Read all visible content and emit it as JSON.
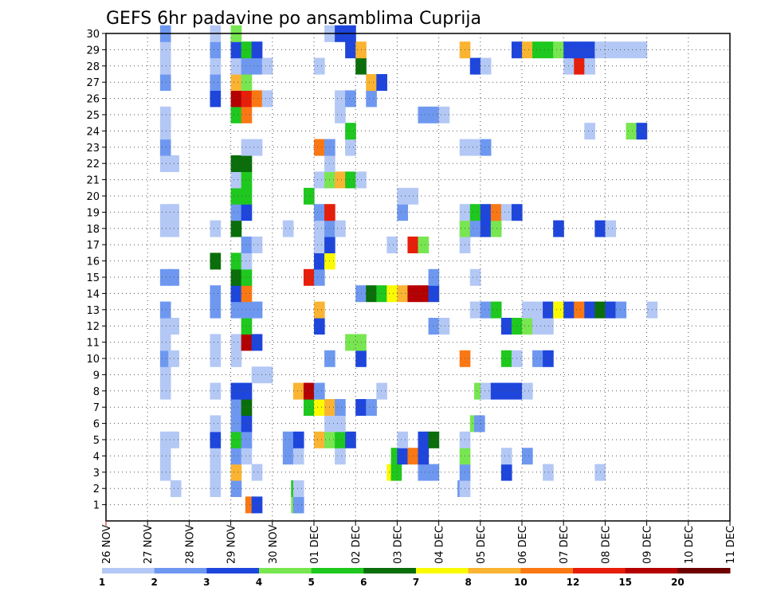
{
  "chart_data": {
    "type": "heatmap",
    "title": "GEFS 6hr padavine po ansamblima Cuprija",
    "xlabel": "",
    "ylabel": "",
    "x_ticks": [
      "26 NOV",
      "27 NOV",
      "28 NOV",
      "29 NOV",
      "30 NOV",
      "01 DEC",
      "02 DEC",
      "03 DEC",
      "04 DEC",
      "05 DEC",
      "06 DEC",
      "07 DEC",
      "08 DEC",
      "09 DEC",
      "10 DEC",
      "11 DEC"
    ],
    "y_ticks": [
      1,
      2,
      3,
      4,
      5,
      6,
      7,
      8,
      9,
      10,
      11,
      12,
      13,
      14,
      15,
      16,
      17,
      18,
      19,
      20,
      21,
      22,
      23,
      24,
      25,
      26,
      27,
      28,
      29,
      30
    ],
    "ylim": [
      0,
      30
    ],
    "grid": true,
    "legend": {
      "placement": "bottom",
      "bins": [
        {
          "label": "1",
          "color": "#b4c8f5"
        },
        {
          "label": "2",
          "color": "#6e98f0"
        },
        {
          "label": "3",
          "color": "#1e46dc"
        },
        {
          "label": "4",
          "color": "#78e650"
        },
        {
          "label": "5",
          "color": "#1ec81e"
        },
        {
          "label": "6",
          "color": "#0a6e0a"
        },
        {
          "label": "7",
          "color": "#fafa00"
        },
        {
          "label": "8",
          "color": "#fab432"
        },
        {
          "label": "10",
          "color": "#fa7814"
        },
        {
          "label": "12",
          "color": "#e61e0a"
        },
        {
          "label": "15",
          "color": "#b40000"
        },
        {
          "label": "20",
          "color": "#6e0000"
        }
      ],
      "extra_labels": [
        "1",
        "2",
        "3",
        "4",
        "5",
        "6",
        "7",
        "8",
        "10",
        "12",
        "15",
        "20"
      ]
    },
    "member_data": {
      "1": [
        [
          29.35,
          11
        ],
        [
          29.5,
          3
        ],
        [
          30.45,
          4
        ],
        [
          30.5,
          2
        ]
      ],
      "2": [
        [
          27.55,
          1
        ],
        [
          28.5,
          1
        ],
        [
          29.0,
          2
        ],
        [
          30.45,
          5
        ],
        [
          30.5,
          1
        ],
        [
          34.45,
          2
        ],
        [
          34.5,
          1
        ]
      ],
      "3": [
        [
          27.3,
          1
        ],
        [
          28.5,
          1
        ],
        [
          29.0,
          9
        ],
        [
          29.5,
          1
        ],
        [
          32.75,
          7
        ],
        [
          32.85,
          5
        ],
        [
          33.5,
          2
        ],
        [
          33.75,
          2
        ],
        [
          34.5,
          2
        ],
        [
          35.5,
          3
        ],
        [
          36.5,
          1
        ],
        [
          37.75,
          1
        ]
      ],
      "4": [
        [
          27.3,
          1
        ],
        [
          28.5,
          1
        ],
        [
          29.0,
          2
        ],
        [
          29.25,
          1
        ],
        [
          30.25,
          2
        ],
        [
          30.5,
          1
        ],
        [
          31.5,
          1
        ],
        [
          32.85,
          5
        ],
        [
          33.0,
          3
        ],
        [
          33.25,
          10
        ],
        [
          33.5,
          3
        ],
        [
          34.5,
          4
        ],
        [
          35.5,
          1
        ],
        [
          36.0,
          2
        ]
      ],
      "5": [
        [
          27.3,
          1
        ],
        [
          27.5,
          1
        ],
        [
          28.5,
          3
        ],
        [
          29.0,
          5
        ],
        [
          29.25,
          2
        ],
        [
          30.25,
          2
        ],
        [
          30.5,
          3
        ],
        [
          31.0,
          8
        ],
        [
          31.25,
          4
        ],
        [
          31.5,
          5
        ],
        [
          31.75,
          3
        ],
        [
          33.0,
          1
        ],
        [
          33.5,
          3
        ],
        [
          33.75,
          6
        ],
        [
          34.5,
          1
        ]
      ],
      "6": [
        [
          28.5,
          1
        ],
        [
          29.0,
          2
        ],
        [
          29.25,
          3
        ],
        [
          31.25,
          1
        ],
        [
          31.5,
          1
        ],
        [
          34.75,
          4
        ],
        [
          34.85,
          2
        ]
      ],
      "7": [
        [
          29.0,
          2
        ],
        [
          29.25,
          6
        ],
        [
          30.75,
          5
        ],
        [
          31.0,
          7
        ],
        [
          31.25,
          8
        ],
        [
          31.5,
          2
        ],
        [
          32.0,
          3
        ],
        [
          32.25,
          2
        ]
      ],
      "8": [
        [
          27.3,
          1
        ],
        [
          28.5,
          1
        ],
        [
          29.0,
          3
        ],
        [
          29.25,
          3
        ],
        [
          30.5,
          8
        ],
        [
          30.75,
          15
        ],
        [
          31.0,
          2
        ],
        [
          32.5,
          1
        ],
        [
          34.85,
          4
        ],
        [
          35.0,
          1
        ],
        [
          35.25,
          3
        ],
        [
          35.5,
          3
        ],
        [
          35.75,
          3
        ],
        [
          36.0,
          1
        ]
      ],
      "9": [
        [
          27.3,
          1
        ],
        [
          29.5,
          1
        ],
        [
          29.75,
          1
        ]
      ],
      "10": [
        [
          27.3,
          2
        ],
        [
          27.5,
          1
        ],
        [
          28.5,
          1
        ],
        [
          29.0,
          1
        ],
        [
          31.25,
          2
        ],
        [
          32.0,
          3
        ],
        [
          34.5,
          10
        ],
        [
          35.5,
          5
        ],
        [
          35.75,
          1
        ],
        [
          36.25,
          2
        ],
        [
          36.5,
          3
        ]
      ],
      "11": [
        [
          27.3,
          1
        ],
        [
          28.5,
          1
        ],
        [
          29.0,
          1
        ],
        [
          29.25,
          15
        ],
        [
          29.5,
          3
        ],
        [
          31.75,
          4
        ],
        [
          32.0,
          4
        ]
      ],
      "12": [
        [
          27.3,
          1
        ],
        [
          27.5,
          1
        ],
        [
          29.25,
          5
        ],
        [
          31.0,
          3
        ],
        [
          33.75,
          2
        ],
        [
          34.0,
          1
        ],
        [
          35.5,
          3
        ],
        [
          35.75,
          5
        ],
        [
          36.0,
          4
        ],
        [
          36.25,
          1
        ],
        [
          36.5,
          1
        ]
      ],
      "13": [
        [
          27.3,
          2
        ],
        [
          28.5,
          2
        ],
        [
          29.0,
          2
        ],
        [
          29.25,
          2
        ],
        [
          29.5,
          2
        ],
        [
          31.0,
          8
        ],
        [
          34.75,
          1
        ],
        [
          35.0,
          2
        ],
        [
          35.25,
          5
        ],
        [
          36.0,
          1
        ],
        [
          36.25,
          1
        ],
        [
          36.5,
          3
        ],
        [
          36.75,
          7
        ],
        [
          37.0,
          3
        ],
        [
          37.25,
          10
        ],
        [
          37.5,
          3
        ],
        [
          37.75,
          6
        ],
        [
          38.0,
          3
        ],
        [
          38.25,
          2
        ],
        [
          39.0,
          1
        ]
      ],
      "14": [
        [
          28.5,
          2
        ],
        [
          29.0,
          3
        ],
        [
          29.25,
          10
        ],
        [
          32.0,
          2
        ],
        [
          32.25,
          6
        ],
        [
          32.5,
          5
        ],
        [
          32.75,
          7
        ],
        [
          33.0,
          8
        ],
        [
          33.25,
          15
        ],
        [
          33.5,
          15
        ],
        [
          33.75,
          3
        ]
      ],
      "15": [
        [
          27.3,
          2
        ],
        [
          27.5,
          2
        ],
        [
          29.0,
          6
        ],
        [
          29.25,
          5
        ],
        [
          30.75,
          12
        ],
        [
          31.0,
          2
        ],
        [
          33.75,
          2
        ],
        [
          34.75,
          1
        ]
      ],
      "16": [
        [
          28.5,
          6
        ],
        [
          29.0,
          5
        ],
        [
          29.25,
          1
        ],
        [
          31.0,
          3
        ],
        [
          31.25,
          7
        ]
      ],
      "17": [
        [
          29.25,
          2
        ],
        [
          29.5,
          1
        ],
        [
          31.0,
          1
        ],
        [
          31.25,
          3
        ],
        [
          32.75,
          1
        ],
        [
          33.25,
          12
        ],
        [
          33.5,
          4
        ],
        [
          34.5,
          1
        ]
      ],
      "18": [
        [
          27.3,
          1
        ],
        [
          27.5,
          1
        ],
        [
          28.5,
          1
        ],
        [
          29.0,
          6
        ],
        [
          30.25,
          1
        ],
        [
          31.0,
          1
        ],
        [
          31.25,
          2
        ],
        [
          31.5,
          1
        ],
        [
          34.5,
          4
        ],
        [
          34.75,
          2
        ],
        [
          35.0,
          3
        ],
        [
          35.25,
          4
        ],
        [
          36.75,
          3
        ],
        [
          37.75,
          3
        ],
        [
          38.0,
          1
        ]
      ],
      "19": [
        [
          27.3,
          1
        ],
        [
          27.5,
          1
        ],
        [
          29.0,
          2
        ],
        [
          29.25,
          3
        ],
        [
          31.0,
          2
        ],
        [
          31.25,
          12
        ],
        [
          33.0,
          2
        ],
        [
          34.5,
          1
        ],
        [
          34.75,
          5
        ],
        [
          35.0,
          3
        ],
        [
          35.25,
          10
        ],
        [
          35.5,
          1
        ],
        [
          35.75,
          3
        ]
      ],
      "20": [
        [
          29.0,
          5
        ],
        [
          29.25,
          5
        ],
        [
          30.75,
          5
        ],
        [
          33.0,
          1
        ],
        [
          33.25,
          1
        ]
      ],
      "21": [
        [
          29.0,
          1
        ],
        [
          29.25,
          5
        ],
        [
          31.0,
          1
        ],
        [
          31.25,
          4
        ],
        [
          31.5,
          8
        ],
        [
          31.75,
          5
        ],
        [
          32.0,
          1
        ]
      ],
      "22": [
        [
          27.3,
          1
        ],
        [
          27.5,
          1
        ],
        [
          29.0,
          6
        ],
        [
          29.25,
          6
        ],
        [
          31.25,
          1
        ]
      ],
      "23": [
        [
          27.3,
          2
        ],
        [
          29.25,
          1
        ],
        [
          29.5,
          1
        ],
        [
          31.0,
          10
        ],
        [
          31.25,
          2
        ],
        [
          31.75,
          1
        ],
        [
          34.5,
          1
        ],
        [
          34.75,
          1
        ],
        [
          35.0,
          2
        ]
      ],
      "24": [
        [
          27.3,
          1
        ],
        [
          31.75,
          5
        ],
        [
          37.5,
          1
        ],
        [
          38.5,
          4
        ],
        [
          38.75,
          3
        ]
      ],
      "25": [
        [
          27.3,
          1
        ],
        [
          29.0,
          5
        ],
        [
          29.25,
          10
        ],
        [
          31.5,
          1
        ],
        [
          33.5,
          2
        ],
        [
          33.75,
          2
        ],
        [
          34.0,
          1
        ]
      ],
      "26": [
        [
          28.5,
          3
        ],
        [
          29.0,
          15
        ],
        [
          29.25,
          12
        ],
        [
          29.5,
          10
        ],
        [
          29.75,
          1
        ],
        [
          31.5,
          1
        ],
        [
          31.75,
          2
        ],
        [
          32.25,
          2
        ]
      ],
      "27": [
        [
          27.3,
          2
        ],
        [
          28.5,
          2
        ],
        [
          29.0,
          8
        ],
        [
          29.25,
          4
        ],
        [
          32.25,
          8
        ],
        [
          32.5,
          3
        ]
      ],
      "28": [
        [
          27.3,
          1
        ],
        [
          28.5,
          1
        ],
        [
          29.0,
          1
        ],
        [
          29.25,
          2
        ],
        [
          29.5,
          2
        ],
        [
          29.75,
          1
        ],
        [
          31.0,
          1
        ],
        [
          32.0,
          6
        ],
        [
          34.75,
          3
        ],
        [
          35.0,
          1
        ],
        [
          37.0,
          1
        ],
        [
          37.25,
          12
        ],
        [
          37.5,
          1
        ]
      ],
      "29": [
        [
          27.3,
          1
        ],
        [
          28.5,
          2
        ],
        [
          29.0,
          3
        ],
        [
          29.25,
          5
        ],
        [
          29.5,
          3
        ],
        [
          31.75,
          3
        ],
        [
          32.0,
          8
        ],
        [
          34.5,
          8
        ],
        [
          35.75,
          3
        ],
        [
          36.0,
          8
        ],
        [
          36.25,
          5
        ],
        [
          36.5,
          5
        ],
        [
          36.75,
          4
        ],
        [
          37.0,
          3
        ],
        [
          37.25,
          3
        ],
        [
          37.5,
          3
        ],
        [
          37.75,
          1
        ],
        [
          38.0,
          1
        ],
        [
          38.25,
          1
        ],
        [
          38.5,
          1
        ],
        [
          38.75,
          1
        ]
      ],
      "30": [
        [
          27.3,
          2
        ],
        [
          28.5,
          1
        ],
        [
          29.0,
          4
        ],
        [
          31.25,
          1
        ],
        [
          31.5,
          3
        ],
        [
          31.75,
          3
        ]
      ]
    }
  }
}
